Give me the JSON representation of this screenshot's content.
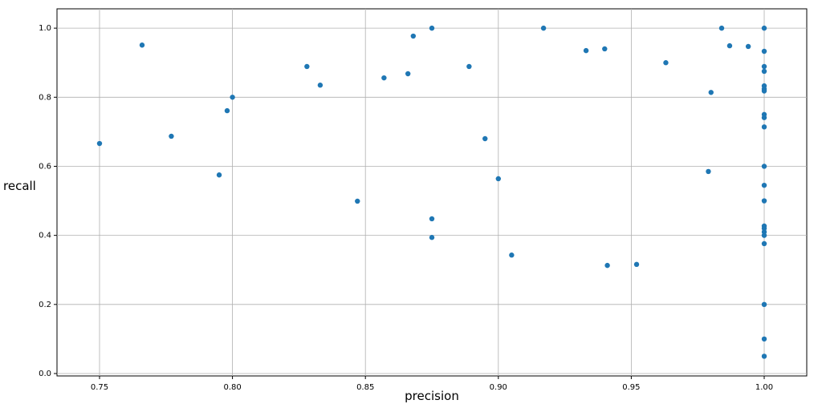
{
  "chart_data": {
    "type": "scatter",
    "x_label": "precision",
    "y_label": "recall",
    "color": "#1f77b4",
    "grid": true,
    "xlim": [
      0.734,
      1.016
    ],
    "ylim": [
      -0.007,
      1.056
    ],
    "xticks": [
      0.75,
      {
        "value": 0.8,
        "label": "0.80"
      },
      0.85,
      {
        "value": 0.9,
        "label": "0.90"
      },
      0.95,
      {
        "value": 1.0,
        "label": "1.00"
      }
    ],
    "yticks": [
      {
        "value": 0.0,
        "label": "0.0"
      },
      0.2,
      0.4,
      0.6,
      0.8,
      {
        "value": 1.0,
        "label": "1.0"
      }
    ],
    "x": [
      0.75,
      0.766,
      0.777,
      0.795,
      0.798,
      0.8,
      0.828,
      0.833,
      0.847,
      0.857,
      0.866,
      0.868,
      0.875,
      0.875,
      0.875,
      0.889,
      0.895,
      0.9,
      0.905,
      0.917,
      0.933,
      0.94,
      0.941,
      0.952,
      0.963,
      0.979,
      0.98,
      0.984,
      0.987,
      0.994,
      1.0,
      1.0,
      1.0,
      1.0,
      1.0,
      1.0,
      1.0,
      1.0,
      1.0,
      1.0,
      1.0,
      1.0,
      1.0,
      1.0,
      1.0,
      1.0,
      1.0,
      1.0,
      1.0,
      1.0,
      1.0
    ],
    "values": [
      0.666,
      0.951,
      0.687,
      0.575,
      0.761,
      0.8,
      0.889,
      0.835,
      0.499,
      0.856,
      0.868,
      0.977,
      1.0,
      0.448,
      0.394,
      0.889,
      0.68,
      0.564,
      0.343,
      1.0,
      0.935,
      0.94,
      0.313,
      0.316,
      0.9,
      0.585,
      0.814,
      1.0,
      0.949,
      0.947,
      1.0,
      0.933,
      0.889,
      0.875,
      0.833,
      0.824,
      0.818,
      0.75,
      0.741,
      0.714,
      0.6,
      0.545,
      0.5,
      0.427,
      0.42,
      0.41,
      0.4,
      0.376,
      0.2,
      0.1,
      0.05
    ]
  }
}
